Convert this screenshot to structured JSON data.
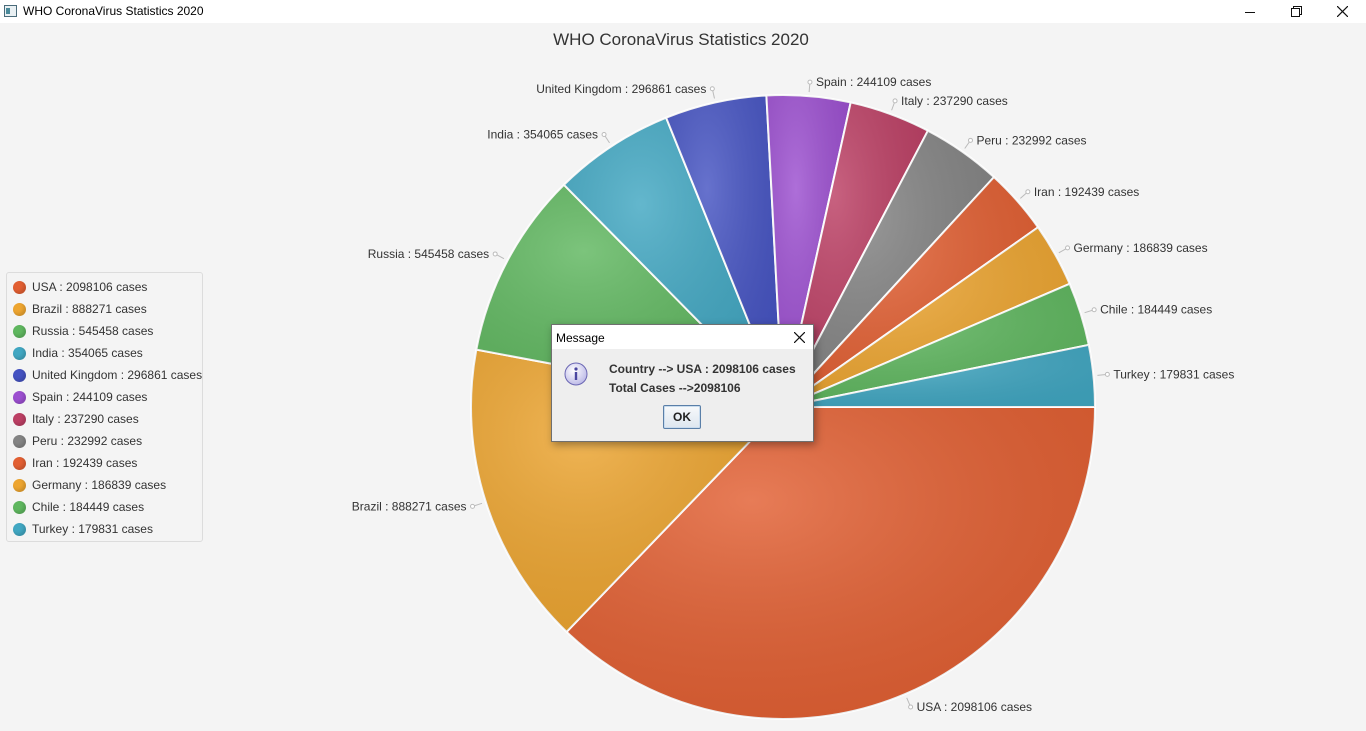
{
  "window": {
    "title": "WHO CoronaVirus Statistics 2020",
    "icon": "app-window-icon",
    "controls": [
      "minimize-icon",
      "restore-icon",
      "close-icon"
    ]
  },
  "chart_data": {
    "type": "pie",
    "title": "WHO CoronaVirus Statistics 2020",
    "legend": "left",
    "slices": [
      {
        "name": "USA",
        "value": 2098106,
        "label": "USA : 2098106 cases",
        "color": "#e25f32"
      },
      {
        "name": "Brazil",
        "value": 888271,
        "label": "Brazil : 888271 cases",
        "color": "#eda530"
      },
      {
        "name": "Russia",
        "value": 545458,
        "label": "Russia : 545458 cases",
        "color": "#5fb75f"
      },
      {
        "name": "India",
        "value": 354065,
        "label": "India : 354065 cases",
        "color": "#41a7c2"
      },
      {
        "name": "United Kingdom",
        "value": 296861,
        "label": "United Kingdom : 296861 cases",
        "color": "#4553c2"
      },
      {
        "name": "Spain",
        "value": 244109,
        "label": "Spain : 244109 cases",
        "color": "#9c4fd0"
      },
      {
        "name": "Italy",
        "value": 237290,
        "label": "Italy : 237290 cases",
        "color": "#bc3f64"
      },
      {
        "name": "Peru",
        "value": 232992,
        "label": "Peru : 232992 cases",
        "color": "#848484"
      },
      {
        "name": "Iran",
        "value": 192439,
        "label": "Iran : 192439 cases",
        "color": "#e25f32"
      },
      {
        "name": "Germany",
        "value": 186839,
        "label": "Germany : 186839 cases",
        "color": "#eda530"
      },
      {
        "name": "Chile",
        "value": 184449,
        "label": "Chile : 184449 cases",
        "color": "#5fb75f"
      },
      {
        "name": "Turkey",
        "value": 179831,
        "label": "Turkey : 179831 cases",
        "color": "#41a7c2"
      }
    ]
  },
  "dialog": {
    "title": "Message",
    "icon": "info-icon",
    "line1": "Country --> USA : 2098106 cases",
    "line2": "Total Cases -->2098106",
    "ok_label": "OK"
  }
}
